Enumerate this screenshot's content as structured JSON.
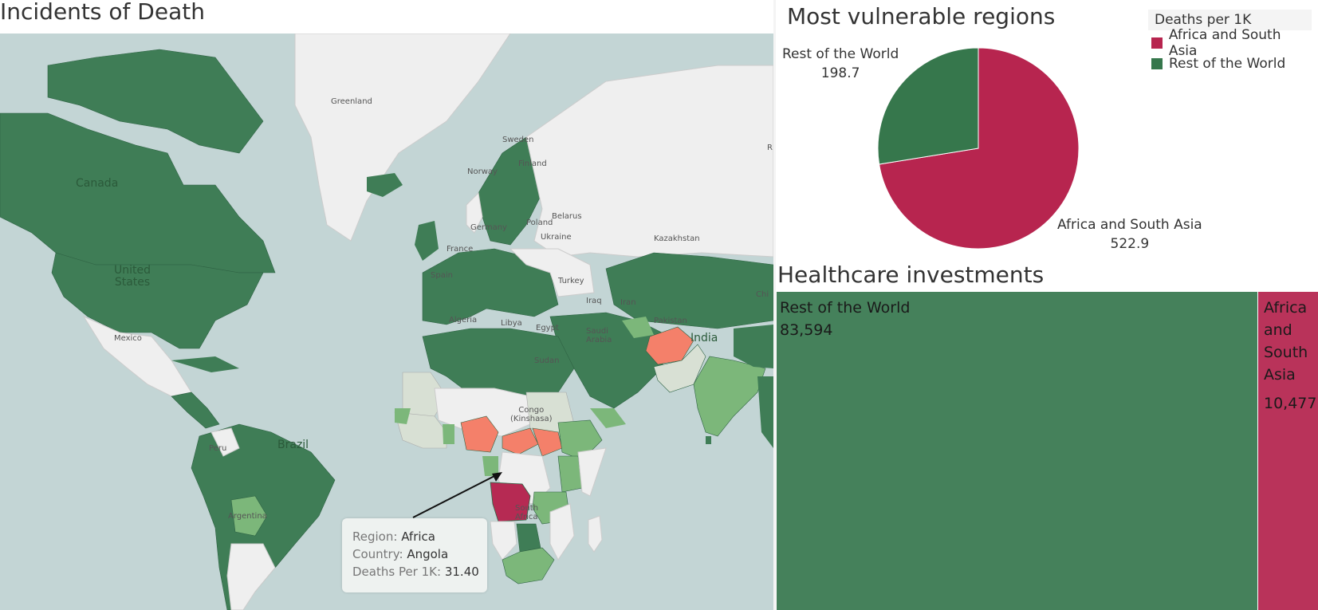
{
  "map": {
    "title": "Incidents of Death",
    "labels": {
      "greenland": "Greenland",
      "canada": "Canada",
      "united_states": "United\nStates",
      "mexico": "Mexico",
      "brazil": "Brazil",
      "peru": "Peru",
      "argentina": "Argentina",
      "norway": "Norway",
      "finland": "Finland",
      "sweden": "Sweden",
      "poland": "Poland",
      "belarus": "Belarus",
      "ukraine": "Ukraine",
      "germany": "Germany",
      "france": "France",
      "spain": "Spain",
      "turkey": "Turkey",
      "iran": "Iran",
      "iraq": "Iraq",
      "kazakhstan": "Kazakhstan",
      "saudi_arabia": "Saudi\nArabia",
      "algeria": "Algeria",
      "libya": "Libya",
      "egypt": "Egypt",
      "sudan": "Sudan",
      "congo": "Congo\n(Kinshasa)",
      "south_africa": "South\nAfrica",
      "india": "India",
      "pakistan": "Pakistan",
      "china_partial": "Chi",
      "russia_partial": "R"
    },
    "colors": {
      "ocean": "#c3d5d5",
      "land_no_data": "#efefef",
      "dark_green": "#3f7d56",
      "light_green": "#7cb77a",
      "pale": "#d8e0d4",
      "salmon": "#f4806a",
      "crimson": "#b62a53"
    },
    "tooltip": {
      "region_label": "Region:",
      "region_value": "Africa",
      "country_label": "Country:",
      "country_value": "Angola",
      "deaths_label": "Deaths Per 1K:",
      "deaths_value": "31.40"
    }
  },
  "pie": {
    "title": "Most vulnerable regions",
    "legend_title": "Deaths per 1K",
    "slices": [
      {
        "name": "Africa and South Asia",
        "value": 522.9,
        "value_label": "522.9",
        "color": "#b7254f"
      },
      {
        "name": "Rest of the World",
        "value": 198.7,
        "value_label": "198.7",
        "color": "#36774c"
      }
    ]
  },
  "treemap": {
    "title": "Healthcare investments",
    "cells": [
      {
        "name": "Rest of the World",
        "value": 83594,
        "value_label": "83,594",
        "color": "#45815b"
      },
      {
        "name": "Africa\nand\nSouth\nAsia",
        "value": 10477,
        "value_label": "10,477",
        "color": "#b9335a"
      }
    ]
  }
}
